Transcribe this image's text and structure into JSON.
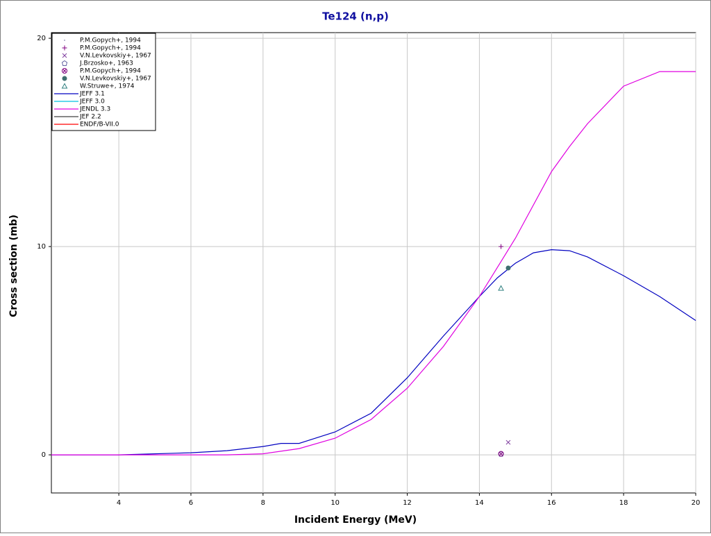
{
  "chart_data": {
    "type": "line",
    "title": "Te124 (n,p)",
    "x_label": "Incident Energy (MeV)",
    "y_label": "Cross section (mb)",
    "xlim": [
      2.13,
      20
    ],
    "xticks": [
      4,
      6,
      8,
      10,
      12,
      14,
      16,
      18,
      20
    ],
    "ylim": [
      -1.83,
      20.27
    ],
    "yticks": [
      0,
      10,
      20
    ],
    "grid": true,
    "legend": "upper left",
    "points": [
      {
        "name": "P.M.Gopych+, 1994",
        "color": "#a0a0c0",
        "marker": "dot",
        "x": [
          14.6
        ],
        "values": [
          0.05
        ]
      },
      {
        "name": "P.M.Gopych+, 1994",
        "color": "#800080",
        "marker": "plus",
        "x": [
          14.6
        ],
        "values": [
          10
        ]
      },
      {
        "name": "V.N.Levkovskiy+, 1967",
        "color": "#8040a0",
        "marker": "cross",
        "x": [
          14.8
        ],
        "values": [
          0.6
        ]
      },
      {
        "name": "J.Brzosko+, 1963",
        "color": "#6060a0",
        "marker": "pentagon",
        "x": [
          14.6
        ],
        "values": [
          0.05
        ]
      },
      {
        "name": "P.M.Gopych+, 1994",
        "color": "#800080",
        "marker": "circle-x",
        "x": [
          14.6
        ],
        "values": [
          0.05
        ]
      },
      {
        "name": "V.N.Levkovskiy+, 1967",
        "color": "#407070",
        "marker": "filled-circle",
        "x": [
          14.8
        ],
        "values": [
          8.97
        ]
      },
      {
        "name": "W.Struwe+, 1974",
        "color": "#308080",
        "marker": "triangle",
        "x": [
          14.6
        ],
        "values": [
          8.0
        ]
      }
    ],
    "series": [
      {
        "name": "JEFF 3.1",
        "color": "#0000c0",
        "x": [
          2.13,
          4,
          6,
          7,
          8,
          8.5,
          9,
          10,
          11,
          12,
          13,
          14,
          14.5,
          15,
          15.5,
          16,
          16.5,
          17,
          18,
          19,
          20
        ],
        "values": [
          0,
          0,
          0.1,
          0.2,
          0.4,
          0.55,
          0.55,
          1.1,
          2.0,
          3.7,
          5.7,
          7.6,
          8.5,
          9.2,
          9.7,
          9.85,
          9.8,
          9.5,
          8.6,
          7.6,
          6.45
        ]
      },
      {
        "name": "JEFF 3.0",
        "color": "#00c0e0",
        "x": [],
        "values": []
      },
      {
        "name": "JENDL 3.3",
        "color": "#e000e0",
        "x": [
          2.13,
          7,
          8,
          9,
          10,
          11,
          12,
          13,
          14,
          14.5,
          15,
          16,
          16.5,
          17,
          18,
          19,
          20
        ],
        "values": [
          0,
          0,
          0.05,
          0.3,
          0.8,
          1.7,
          3.2,
          5.2,
          7.6,
          9.0,
          10.4,
          13.6,
          14.8,
          15.9,
          17.7,
          18.4,
          18.4
        ]
      },
      {
        "name": "JEF 2.2",
        "color": "#404040",
        "x": [],
        "values": []
      },
      {
        "name": "ENDF/B-VII.0",
        "color": "#ff0000",
        "x": [],
        "values": []
      }
    ]
  }
}
